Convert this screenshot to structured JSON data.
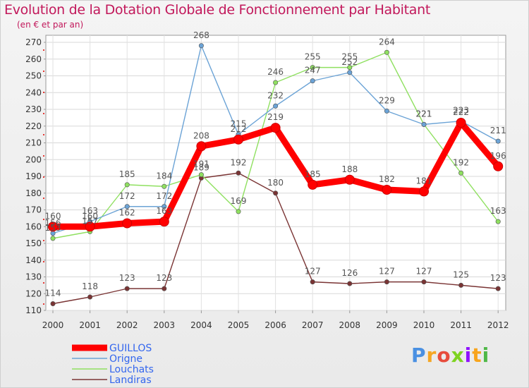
{
  "chart_data": {
    "type": "line",
    "title": "Evolution de la Dotation Globale de Fonctionnement par Habitant",
    "subtitle": "(en € et par an)",
    "categories": [
      "2000",
      "2001",
      "2002",
      "2003",
      "2004",
      "2005",
      "2006",
      "2007",
      "2008",
      "2009",
      "2010",
      "2011",
      "2012"
    ],
    "ylim": [
      110,
      270
    ],
    "yticks": [
      110,
      120,
      130,
      140,
      150,
      160,
      170,
      180,
      190,
      200,
      210,
      220,
      230,
      240,
      250,
      260,
      270
    ],
    "series": [
      {
        "name": "GUILLOS",
        "color": "#ff0000",
        "values": [
          160,
          160,
          162,
          163,
          208,
          212,
          219,
          185,
          188,
          182,
          181,
          222,
          196
        ]
      },
      {
        "name": "Origne",
        "color": "#6ba3d6",
        "values": [
          156,
          163,
          172,
          172,
          268,
          215,
          232,
          247,
          252,
          229,
          221,
          223,
          211
        ]
      },
      {
        "name": "Louchats",
        "color": "#8fe060",
        "values": [
          153,
          157,
          185,
          184,
          191,
          169,
          246,
          255,
          255,
          264,
          221,
          192,
          163
        ]
      },
      {
        "name": "Landiras",
        "color": "#7a3434",
        "values": [
          114,
          118,
          123,
          123,
          189,
          192,
          180,
          127,
          126,
          127,
          127,
          125,
          123
        ]
      }
    ]
  },
  "logo": {
    "text": "Proxiti",
    "colors": [
      "#4a90e2",
      "#f5a623",
      "#e74c3c",
      "#7ed321",
      "#9013fe",
      "#f8a51c",
      "#50b848"
    ]
  }
}
